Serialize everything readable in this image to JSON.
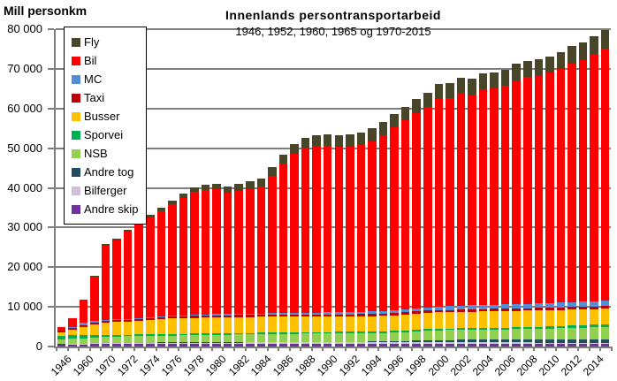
{
  "header": {
    "unit_label": "Mill personkm",
    "title": "Innenlands persontransportarbeid",
    "subtitle": "1946, 1952, 1960, 1965 og 1970-2015"
  },
  "chart_data": {
    "type": "bar",
    "stacked": true,
    "title": "Innenlands persontransportarbeid",
    "subtitle": "1946, 1952, 1960, 1965 og 1970-2015",
    "ylabel": "Mill personkm",
    "xlabel": "",
    "ylim": [
      0,
      80000
    ],
    "ytick_step": 10000,
    "ytick_labels": [
      "0",
      "10 000",
      "20 000",
      "30 000",
      "40 000",
      "50 000",
      "60 000",
      "70 000",
      "80 000"
    ],
    "grid": true,
    "legend_position": "upper-left-inside",
    "x_label_every": 2,
    "years": [
      1946,
      1952,
      1960,
      1965,
      1970,
      1971,
      1972,
      1973,
      1974,
      1975,
      1976,
      1977,
      1978,
      1979,
      1980,
      1981,
      1982,
      1983,
      1984,
      1985,
      1986,
      1987,
      1988,
      1989,
      1990,
      1991,
      1992,
      1993,
      1994,
      1995,
      1996,
      1997,
      1998,
      1999,
      2000,
      2001,
      2002,
      2003,
      2004,
      2005,
      2006,
      2007,
      2008,
      2009,
      2010,
      2011,
      2012,
      2013,
      2014,
      2015
    ],
    "shown_xtick_labels": [
      "1946",
      "1960",
      "1970",
      "1972",
      "1974",
      "1976",
      "1978",
      "1980",
      "1982",
      "1984",
      "1986",
      "1988",
      "1990",
      "1992",
      "1994",
      "1996",
      "1998",
      "2000",
      "2002",
      "2004",
      "2006",
      "2008",
      "2010",
      "2012",
      "2014"
    ],
    "series": [
      {
        "name": "Fly",
        "color": "#494529",
        "values": [
          50,
          50,
          70,
          150,
          400,
          470,
          540,
          610,
          700,
          800,
          920,
          1040,
          1160,
          1280,
          1400,
          1540,
          1680,
          1820,
          1960,
          2100,
          2240,
          2380,
          2520,
          2660,
          2800,
          2900,
          3000,
          3100,
          3200,
          3300,
          3400,
          3500,
          3600,
          3700,
          3800,
          3860,
          3920,
          3980,
          4040,
          4100,
          4120,
          4140,
          4160,
          4180,
          4200,
          4280,
          4360,
          4440,
          4520,
          4600
        ]
      },
      {
        "name": "Bil",
        "color": "#FF0000",
        "values": [
          950,
          2150,
          5900,
          11270,
          18710,
          19990,
          21970,
          23550,
          25100,
          26430,
          28005,
          29570,
          31035,
          31395,
          31400,
          30635,
          31055,
          31480,
          32085,
          34705,
          37630,
          40160,
          41570,
          42080,
          42090,
          41740,
          41690,
          42025,
          42945,
          44360,
          46050,
          47645,
          49130,
          50395,
          52420,
          52455,
          53595,
          53235,
          54285,
          54560,
          55045,
          56440,
          57125,
          57330,
          58040,
          58955,
          60160,
          60870,
          62385,
          63710
        ]
      },
      {
        "name": "MC",
        "color": "#558ED5",
        "values": [
          70,
          250,
          600,
          400,
          200,
          210,
          220,
          230,
          240,
          250,
          255,
          260,
          270,
          280,
          300,
          310,
          320,
          330,
          340,
          350,
          370,
          400,
          430,
          470,
          500,
          530,
          560,
          590,
          620,
          650,
          700,
          750,
          800,
          850,
          900,
          930,
          960,
          990,
          1020,
          1050,
          1080,
          1110,
          1140,
          1170,
          1200,
          1220,
          1240,
          1260,
          1280,
          1300
        ]
      },
      {
        "name": "Taxi",
        "color": "#C00000",
        "values": [
          250,
          300,
          350,
          400,
          450,
          455,
          460,
          465,
          470,
          480,
          485,
          490,
          495,
          500,
          500,
          505,
          505,
          510,
          515,
          520,
          525,
          530,
          535,
          540,
          540,
          545,
          545,
          550,
          555,
          560,
          565,
          570,
          575,
          580,
          580,
          585,
          590,
          595,
          600,
          600,
          605,
          610,
          615,
          620,
          620,
          625,
          630,
          640,
          645,
          650
        ]
      },
      {
        "name": "Busser",
        "color": "#FFC000",
        "values": [
          1050,
          1500,
          2100,
          2700,
          3100,
          3200,
          3300,
          3400,
          3600,
          3800,
          3850,
          3900,
          3950,
          4000,
          4000,
          4000,
          4000,
          4000,
          4000,
          4000,
          3980,
          3950,
          3930,
          3900,
          3900,
          3890,
          3880,
          3880,
          3890,
          3900,
          3950,
          4000,
          4050,
          4080,
          4100,
          4120,
          4150,
          4170,
          4190,
          4200,
          4180,
          4150,
          4130,
          4110,
          4100,
          4060,
          4020,
          3980,
          3940,
          3900
        ]
      },
      {
        "name": "Sporvei",
        "color": "#00B050",
        "values": [
          850,
          900,
          800,
          550,
          450,
          440,
          435,
          430,
          425,
          420,
          415,
          410,
          405,
          400,
          400,
          395,
          390,
          385,
          380,
          375,
          370,
          365,
          360,
          360,
          360,
          360,
          365,
          365,
          370,
          370,
          375,
          380,
          390,
          395,
          400,
          410,
          420,
          435,
          445,
          450,
          470,
          490,
          510,
          530,
          550,
          580,
          610,
          640,
          670,
          700
        ]
      },
      {
        "name": "NSB",
        "color": "#92D050",
        "values": [
          1150,
          1250,
          1300,
          1450,
          1550,
          1580,
          1600,
          1630,
          1660,
          1700,
          1740,
          1780,
          1820,
          1860,
          1900,
          1910,
          1930,
          1950,
          1980,
          2000,
          2020,
          2040,
          2060,
          2080,
          2100,
          2120,
          2140,
          2160,
          2180,
          2200,
          2250,
          2300,
          2350,
          2400,
          2450,
          2470,
          2480,
          2490,
          2500,
          2500,
          2550,
          2600,
          2650,
          2680,
          2700,
          2780,
          2860,
          2940,
          3020,
          3100
        ]
      },
      {
        "name": "Andre tog",
        "color": "#1F4E5F",
        "values": [
          80,
          80,
          80,
          80,
          90,
          90,
          95,
          95,
          100,
          100,
          100,
          105,
          105,
          110,
          110,
          110,
          115,
          115,
          120,
          120,
          125,
          130,
          140,
          150,
          150,
          155,
          160,
          170,
          180,
          200,
          250,
          300,
          450,
          550,
          600,
          620,
          640,
          660,
          680,
          700,
          720,
          740,
          760,
          780,
          800,
          820,
          850,
          870,
          890,
          900
        ]
      },
      {
        "name": "Bilferger",
        "color": "#CCC0DA",
        "values": [
          100,
          120,
          150,
          200,
          250,
          260,
          270,
          280,
          290,
          300,
          310,
          320,
          330,
          340,
          350,
          355,
          360,
          365,
          370,
          380,
          385,
          390,
          395,
          400,
          400,
          400,
          400,
          400,
          400,
          400,
          395,
          390,
          385,
          380,
          380,
          375,
          370,
          365,
          360,
          360,
          355,
          350,
          345,
          340,
          340,
          335,
          330,
          325,
          320,
          320
        ]
      },
      {
        "name": "Andre skip",
        "color": "#7030A0",
        "values": [
          450,
          500,
          550,
          600,
          600,
          605,
          610,
          610,
          615,
          620,
          620,
          625,
          630,
          635,
          640,
          640,
          645,
          645,
          650,
          650,
          655,
          655,
          660,
          660,
          660,
          660,
          660,
          660,
          660,
          660,
          665,
          665,
          670,
          670,
          670,
          675,
          675,
          680,
          680,
          680,
          675,
          670,
          665,
          660,
          650,
          645,
          640,
          635,
          630,
          620
        ]
      }
    ]
  }
}
